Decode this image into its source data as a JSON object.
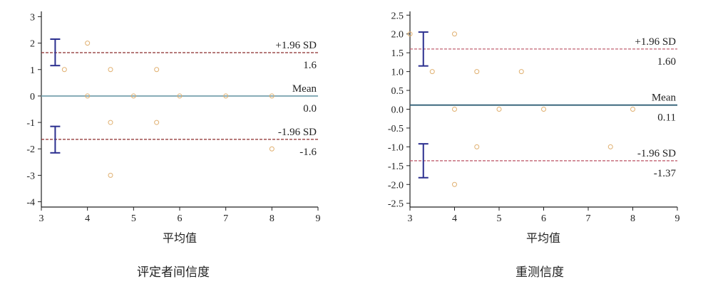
{
  "chart_data": [
    {
      "type": "scatter",
      "caption": "评定者间信度",
      "xlabel": "平均值",
      "ylabel": "",
      "xlim": [
        3,
        9
      ],
      "ylim": [
        -4.2,
        3.2
      ],
      "x_ticks": [
        3,
        4,
        5,
        6,
        7,
        8,
        9
      ],
      "y_ticks": [
        -4,
        -3,
        -2,
        -1,
        0,
        1,
        2,
        3
      ],
      "points": [
        {
          "x": 3.5,
          "y": 1
        },
        {
          "x": 4,
          "y": 2
        },
        {
          "x": 4.5,
          "y": 1
        },
        {
          "x": 5.5,
          "y": 1
        },
        {
          "x": 4,
          "y": 0
        },
        {
          "x": 5,
          "y": 0
        },
        {
          "x": 6,
          "y": 0
        },
        {
          "x": 7,
          "y": 0
        },
        {
          "x": 8,
          "y": 0
        },
        {
          "x": 4.5,
          "y": -1
        },
        {
          "x": 5.5,
          "y": -1
        },
        {
          "x": 4.5,
          "y": -3
        },
        {
          "x": 8,
          "y": -2
        }
      ],
      "reference_lines": [
        {
          "name": "+1.96 SD",
          "value": 1.64,
          "value_label": "1.6",
          "style": "dashed",
          "color": "#8b2a2a"
        },
        {
          "name": "Mean",
          "value": 0.0,
          "value_label": "0.0",
          "style": "solid",
          "color": "#7fa7b3"
        },
        {
          "name": "-1.96 SD",
          "value": -1.64,
          "value_label": "-1.6",
          "style": "dashed",
          "color": "#8b2a2a"
        }
      ],
      "ci_bars": [
        {
          "x": 3.3,
          "low": 1.15,
          "high": 2.15
        },
        {
          "x": 3.3,
          "low": -2.15,
          "high": -1.15
        }
      ],
      "colors": {
        "points": "#e0b070",
        "ci": "#2b2f8f",
        "axis": "#222222"
      }
    },
    {
      "type": "scatter",
      "caption": "重测信度",
      "xlabel": "平均值",
      "ylabel": "",
      "xlim": [
        3,
        9
      ],
      "ylim": [
        -2.6,
        2.6
      ],
      "x_ticks": [
        3,
        4,
        5,
        6,
        7,
        8,
        9
      ],
      "y_ticks": [
        -2.5,
        -2.0,
        -1.5,
        -1.0,
        -0.5,
        0.0,
        0.5,
        1.0,
        1.5,
        2.0,
        2.5
      ],
      "points": [
        {
          "x": 3,
          "y": 2
        },
        {
          "x": 4,
          "y": 2
        },
        {
          "x": 3.5,
          "y": 1
        },
        {
          "x": 4.5,
          "y": 1
        },
        {
          "x": 5.5,
          "y": 1
        },
        {
          "x": 4,
          "y": 0
        },
        {
          "x": 5,
          "y": 0
        },
        {
          "x": 6,
          "y": 0
        },
        {
          "x": 8,
          "y": 0
        },
        {
          "x": 4.5,
          "y": -1
        },
        {
          "x": 7.5,
          "y": -1
        },
        {
          "x": 4,
          "y": -2
        }
      ],
      "reference_lines": [
        {
          "name": "+1.96 SD",
          "value": 1.6,
          "value_label": "1.60",
          "style": "dashed",
          "color": "#c06070"
        },
        {
          "name": "Mean",
          "value": 0.11,
          "value_label": "0.11",
          "style": "solid",
          "color": "#2f5f75"
        },
        {
          "name": "-1.96 SD",
          "value": -1.37,
          "value_label": "-1.37",
          "style": "dashed",
          "color": "#c06070"
        }
      ],
      "ci_bars": [
        {
          "x": 3.3,
          "low": 1.15,
          "high": 2.05
        },
        {
          "x": 3.3,
          "low": -1.82,
          "high": -0.92
        }
      ],
      "colors": {
        "points": "#e0b070",
        "ci": "#2b2f8f",
        "axis": "#222222"
      }
    }
  ]
}
